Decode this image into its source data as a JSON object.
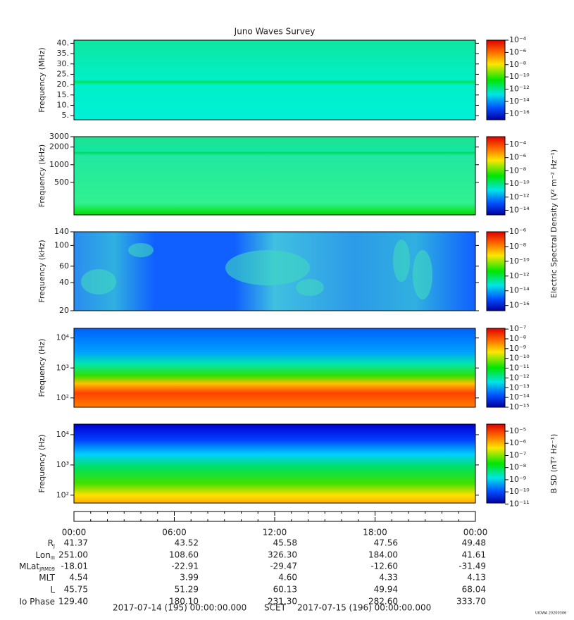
{
  "title": "Juno Waves Survey",
  "chart_data": [
    {
      "type": "spectrogram",
      "ylabel": "Frequency (MHz)",
      "yscale": "linear",
      "ylim": [
        3,
        41.5
      ],
      "yticks": [
        {
          "value": 5,
          "label": "5."
        },
        {
          "value": 10,
          "label": "10."
        },
        {
          "value": 15,
          "label": "15."
        },
        {
          "value": 20,
          "label": "20."
        },
        {
          "value": 25,
          "label": "25."
        },
        {
          "value": 30,
          "label": "30."
        },
        {
          "value": 35,
          "label": "35."
        },
        {
          "value": 40,
          "label": "40."
        }
      ],
      "clim": [
        1e-17,
        0.0001
      ],
      "cticks": [
        {
          "value": 1e-16,
          "label": "10⁻¹⁶"
        },
        {
          "value": 1e-14,
          "label": "10⁻¹⁴"
        },
        {
          "value": 1e-12,
          "label": "10⁻¹²"
        },
        {
          "value": 1e-10,
          "label": "10⁻¹⁰"
        },
        {
          "value": 1e-08,
          "label": "10⁻⁸"
        },
        {
          "value": 1e-06,
          "label": "10⁻⁶"
        },
        {
          "value": 0.0001,
          "label": "10⁻⁴"
        }
      ]
    },
    {
      "type": "spectrogram",
      "ylabel": "Frequency (kHz)",
      "yscale": "log",
      "ylim": [
        140,
        3000
      ],
      "yticks": [
        500,
        1000,
        2000,
        3000
      ],
      "clim": [
        2e-15,
        0.0015
      ],
      "cticks": [
        {
          "value": 1e-14,
          "label": "10⁻¹⁴"
        },
        {
          "value": 1e-12,
          "label": "10⁻¹²"
        },
        {
          "value": 1e-10,
          "label": "10⁻¹⁰"
        },
        {
          "value": 1e-08,
          "label": "10⁻⁸"
        },
        {
          "value": 1e-06,
          "label": "10⁻⁶"
        },
        {
          "value": 0.0001,
          "label": "10⁻⁴"
        }
      ],
      "clabel": "Electric Spectral Density (V² m⁻² Hz⁻¹)"
    },
    {
      "type": "spectrogram",
      "ylabel": "Frequency (kHz)",
      "yscale": "log",
      "ylim": [
        20,
        140
      ],
      "yticks": [
        20,
        40,
        60,
        100,
        140
      ],
      "clim": [
        2e-17,
        1e-06
      ],
      "cticks": [
        {
          "value": 1e-16,
          "label": "10⁻¹⁶"
        },
        {
          "value": 1e-14,
          "label": "10⁻¹⁴"
        },
        {
          "value": 1e-12,
          "label": "10⁻¹²"
        },
        {
          "value": 1e-10,
          "label": "10⁻¹⁰"
        },
        {
          "value": 1e-08,
          "label": "10⁻⁸"
        },
        {
          "value": 1e-06,
          "label": "10⁻⁶"
        }
      ]
    },
    {
      "type": "spectrogram",
      "ylabel": "Frequency (Hz)",
      "yscale": "log",
      "ylim": [
        49,
        21000
      ],
      "yticks": [
        {
          "value": 100,
          "label": "10²"
        },
        {
          "value": 1000,
          "label": "10³"
        },
        {
          "value": 10000,
          "label": "10⁴"
        }
      ],
      "clim": [
        1e-15,
        1.2e-07
      ],
      "cticks": [
        {
          "value": 1e-15,
          "label": "10⁻¹⁵"
        },
        {
          "value": 1e-14,
          "label": "10⁻¹⁴"
        },
        {
          "value": 1e-13,
          "label": "10⁻¹³"
        },
        {
          "value": 1e-12,
          "label": "10⁻¹²"
        },
        {
          "value": 1e-11,
          "label": "10⁻¹¹"
        },
        {
          "value": 1e-10,
          "label": "10⁻¹⁰"
        },
        {
          "value": 1e-09,
          "label": "10⁻⁹"
        },
        {
          "value": 1e-08,
          "label": "10⁻⁸"
        },
        {
          "value": 1e-07,
          "label": "10⁻⁷"
        }
      ]
    },
    {
      "type": "spectrogram",
      "ylabel": "Frequency (Hz)",
      "yscale": "log",
      "ylim": [
        55,
        22300
      ],
      "yticks": [
        {
          "value": 100,
          "label": "10²"
        },
        {
          "value": 1000,
          "label": "10³"
        },
        {
          "value": 10000,
          "label": "10⁴"
        }
      ],
      "clim": [
        1.2e-11,
        3.8e-05
      ],
      "cticks": [
        {
          "value": 1e-11,
          "label": "10⁻¹¹"
        },
        {
          "value": 1e-10,
          "label": "10⁻¹⁰"
        },
        {
          "value": 1e-09,
          "label": "10⁻⁹"
        },
        {
          "value": 1e-08,
          "label": "10⁻⁸"
        },
        {
          "value": 1e-07,
          "label": "10⁻⁷"
        },
        {
          "value": 1e-06,
          "label": "10⁻⁶"
        },
        {
          "value": 1e-05,
          "label": "10⁻⁵"
        }
      ],
      "clabel": "B SD (nT² Hz⁻¹)"
    }
  ],
  "time_axis": {
    "ticks": [
      "00:00",
      "06:00",
      "12:00",
      "18:00",
      "00:00"
    ]
  },
  "ephemeris": [
    {
      "label": "R",
      "sub": "J",
      "values": [
        "41.37",
        "43.52",
        "45.58",
        "47.56",
        "49.48"
      ]
    },
    {
      "label": "Lon",
      "sub": "III",
      "values": [
        "251.00",
        "108.60",
        "326.30",
        "184.00",
        "41.61"
      ]
    },
    {
      "label": "MLat",
      "sub": "JRM09",
      "values": [
        "-18.01",
        "-22.91",
        "-29.47",
        "-12.60",
        "-31.49"
      ]
    },
    {
      "label": "MLT",
      "values": [
        "4.54",
        "3.99",
        "4.60",
        "4.33",
        "4.13"
      ]
    },
    {
      "label": "L",
      "values": [
        "45.75",
        "51.29",
        "60.13",
        "49.94",
        "68.04"
      ]
    },
    {
      "label": "Io Phase",
      "values": [
        "129.40",
        "180.10",
        "231.30",
        "282.60",
        "333.70"
      ]
    }
  ],
  "footer": {
    "start": "2017-07-14 (195) 00:00:00.000",
    "scet": "SCET",
    "end": "2017-07-15 (196) 00:00:00.000",
    "stamp": "UIOWA 20200306"
  }
}
